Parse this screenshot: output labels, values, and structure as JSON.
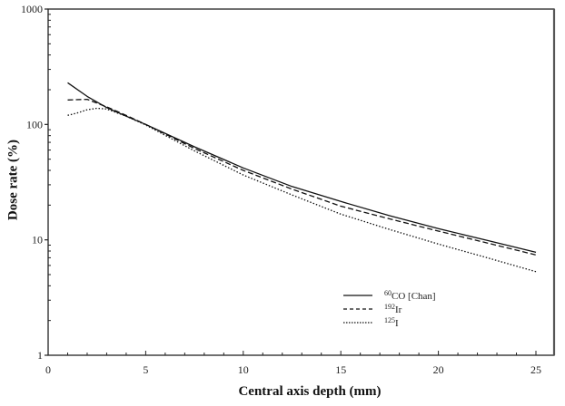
{
  "chart_data": {
    "type": "line",
    "title": "",
    "xlabel": "Central axis depth (mm)",
    "ylabel": "Dose rate (%)",
    "xlim": [
      0,
      26
    ],
    "ylim": [
      1,
      1000
    ],
    "yscale": "log",
    "x_ticks": [
      0,
      5,
      10,
      15,
      20,
      25
    ],
    "y_ticks": [
      1,
      10,
      100,
      1000
    ],
    "grid": false,
    "legend_position": "lower right (inside)",
    "series": [
      {
        "name": "60CO [Chan]",
        "style": "solid",
        "x": [
          1,
          2,
          3,
          4,
          5,
          7.5,
          10,
          12.5,
          15,
          17.5,
          20,
          22.5,
          25
        ],
        "y": [
          230,
          175,
          140,
          118,
          100,
          64,
          42,
          29,
          21.5,
          16.2,
          12.5,
          9.9,
          7.8
        ]
      },
      {
        "name": "192Ir",
        "style": "dashed",
        "x": [
          1,
          2,
          3,
          4,
          5,
          7.5,
          10,
          12.5,
          15,
          17.5,
          20,
          22.5,
          25
        ],
        "y": [
          163,
          165,
          142,
          120,
          100,
          62,
          40,
          27.5,
          19.6,
          15.2,
          11.9,
          9.4,
          7.4
        ]
      },
      {
        "name": "125I",
        "style": "dotted",
        "x": [
          1,
          1.5,
          2,
          2.5,
          3,
          4,
          5,
          7.5,
          10,
          12.5,
          15,
          17.5,
          20,
          22.5,
          25
        ],
        "y": [
          120,
          126,
          134,
          138,
          136,
          118,
          99,
          59,
          36.5,
          24.5,
          16.7,
          12.3,
          9.2,
          7.0,
          5.3
        ]
      }
    ]
  },
  "legend": [
    {
      "sup": "60",
      "text": "CO [Chan]"
    },
    {
      "sup": "192",
      "text": "Ir"
    },
    {
      "sup": "125",
      "text": "I"
    }
  ],
  "axis": {
    "xlabel": "Central axis depth (mm)",
    "ylabel": "Dose rate (%)"
  }
}
